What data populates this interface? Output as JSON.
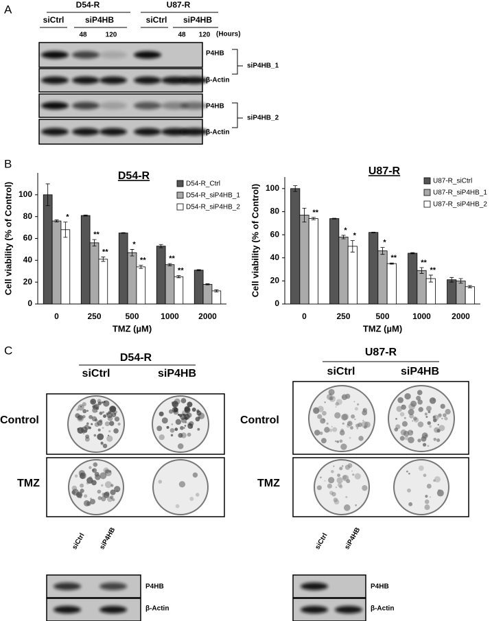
{
  "panel_a": {
    "label": "A",
    "cell_lines": [
      {
        "name": "D54-R",
        "conditions": [
          "siCtrl",
          "siP4HB"
        ],
        "hours": [
          48,
          120
        ]
      },
      {
        "name": "U87-R",
        "conditions": [
          "siCtrl",
          "siP4HB"
        ],
        "hours": [
          48,
          120
        ]
      }
    ],
    "hours_unit": "(Hours)",
    "blots": [
      {
        "rows": [
          "P4HB",
          "β-Actin"
        ],
        "group": "siP4HB_1"
      },
      {
        "rows": [
          "P4HB",
          "β-Actin"
        ],
        "group": "siP4HB_2"
      }
    ]
  },
  "panel_b": {
    "label": "B"
  },
  "chart_data": [
    {
      "type": "bar",
      "title": "D54-R",
      "xlabel": "TMZ (µM)",
      "ylabel": "Cell viability (% of Control)",
      "categories": [
        "0",
        "250",
        "500",
        "1000",
        "2000"
      ],
      "series": [
        {
          "name": "D54-R_Ctrl",
          "color": "#555555",
          "values": [
            100,
            81,
            65,
            53,
            31
          ],
          "errors": [
            10,
            0.5,
            0.3,
            1.5,
            0.5
          ],
          "annotations": [
            null,
            null,
            null,
            null,
            null
          ]
        },
        {
          "name": "D54-R_siP4HB_1",
          "color": "#aaaaaa",
          "values": [
            76,
            56,
            47,
            36,
            18
          ],
          "errors": [
            1,
            3,
            3,
            1,
            0.5
          ],
          "annotations": [
            null,
            "**",
            "*",
            "**",
            null
          ]
        },
        {
          "name": "D54-R_siP4HB_2",
          "color": "#ffffff",
          "values": [
            68,
            41,
            34,
            25,
            12
          ],
          "errors": [
            7,
            2,
            1.5,
            1,
            1
          ],
          "annotations": [
            "*",
            "**",
            "**",
            "**",
            null
          ]
        }
      ],
      "ylim": [
        0,
        120
      ],
      "yticks": [
        0,
        20,
        40,
        60,
        80,
        100
      ],
      "legend": "upper right"
    },
    {
      "type": "bar",
      "title": "U87-R",
      "xlabel": "TMZ (µM)",
      "ylabel": "Cell viability (% of Control)",
      "categories": [
        "0",
        "250",
        "500",
        "1000",
        "2000"
      ],
      "series": [
        {
          "name": "U87-R_siCtrl",
          "color": "#555555",
          "values": [
            100,
            74,
            62,
            44,
            21
          ],
          "errors": [
            2.5,
            0.3,
            0.3,
            0.5,
            2
          ],
          "annotations": [
            null,
            null,
            null,
            null,
            null
          ]
        },
        {
          "name": "U87-R_siP4HB_1",
          "color": "#aaaaaa",
          "values": [
            77,
            58,
            46,
            29,
            20
          ],
          "errors": [
            6,
            1.5,
            3,
            2.5,
            2
          ],
          "annotations": [
            null,
            "*",
            "*",
            "**",
            null
          ]
        },
        {
          "name": "U87-R_siP4HB_2",
          "color": "#ffffff",
          "values": [
            74,
            50,
            35,
            22,
            15
          ],
          "errors": [
            1,
            5,
            0.5,
            3,
            1
          ],
          "annotations": [
            "**",
            "*",
            "**",
            "**",
            null
          ]
        }
      ],
      "ylim": [
        0,
        110
      ],
      "yticks": [
        0,
        20,
        40,
        60,
        80,
        100
      ],
      "legend": "upper right"
    }
  ],
  "panel_c": {
    "label": "C",
    "groups": [
      {
        "title": "D54-R",
        "columns": [
          "siCtrl",
          "siP4HB"
        ],
        "rows": [
          "Control",
          "TMZ"
        ],
        "blot_lanes": [
          "siCtrl",
          "siP4HB"
        ],
        "blot_rows": [
          "P4HB",
          "β-Actin"
        ]
      },
      {
        "title": "U87-R",
        "columns": [
          "siCtrl",
          "siP4HB"
        ],
        "rows": [
          "Control",
          "TMZ"
        ],
        "blot_lanes": [
          "siCtrl",
          "siP4HB"
        ],
        "blot_rows": [
          "P4HB",
          "β-Actin"
        ]
      }
    ]
  }
}
